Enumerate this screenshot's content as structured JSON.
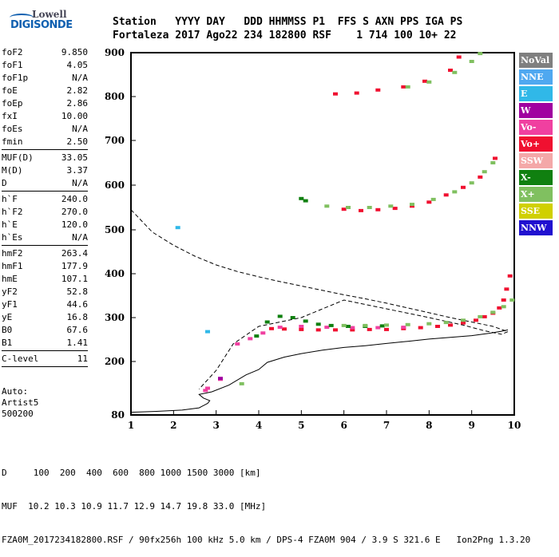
{
  "logo": {
    "line1": "Lowell",
    "line2": "DIGISONDE"
  },
  "header": {
    "labels": "Station   YYYY DAY   DDD HHMMSS P1  FFS S AXN PPS IGA PS",
    "values": "Fortaleza 2017 Ago22 234 182800 RSF    1 714 100 10+ 22"
  },
  "params": {
    "group1": [
      {
        "k": "foF2",
        "v": "9.850"
      },
      {
        "k": "foF1",
        "v": "4.05"
      },
      {
        "k": "foF1p",
        "v": "N/A"
      },
      {
        "k": "foE",
        "v": "2.82"
      },
      {
        "k": "foEp",
        "v": "2.86"
      },
      {
        "k": "fxI",
        "v": "10.00"
      },
      {
        "k": "foEs",
        "v": "N/A"
      },
      {
        "k": "fmin",
        "v": "2.50"
      }
    ],
    "group2": [
      {
        "k": "MUF(D)",
        "v": "33.05"
      },
      {
        "k": "M(D)",
        "v": "3.37"
      },
      {
        "k": "D",
        "v": "N/A"
      }
    ],
    "group3": [
      {
        "k": "h`F",
        "v": "240.0"
      },
      {
        "k": "h`F2",
        "v": "270.0"
      },
      {
        "k": "h`E",
        "v": "120.0"
      },
      {
        "k": "h`Es",
        "v": "N/A"
      }
    ],
    "group4": [
      {
        "k": "hmF2",
        "v": "263.4"
      },
      {
        "k": "hmF1",
        "v": "177.9"
      },
      {
        "k": "hmE",
        "v": "107.1"
      },
      {
        "k": "yF2",
        "v": "52.8"
      },
      {
        "k": "yF1",
        "v": "44.6"
      },
      {
        "k": "yE",
        "v": "16.8"
      },
      {
        "k": "B0",
        "v": "67.6"
      },
      {
        "k": "B1",
        "v": "1.41"
      }
    ],
    "group5": [
      {
        "k": "C-level",
        "v": "11"
      }
    ]
  },
  "auto": {
    "line1": "Auto:",
    "line2": "Artist5",
    "line3": "500200"
  },
  "footer": {
    "line1": "D     100  200  400  600  800 1000 1500 3000 [km]",
    "line2": "MUF  10.2 10.3 10.9 11.7 12.9 14.7 19.8 33.0 [MHz]",
    "line3": "FZA0M_2017234182800.RSF / 90fx256h 100 kHz 5.0 km / DPS-4 FZA0M 904 / 3.9 S 321.6 E   Ion2Png 1.3.20"
  },
  "legend": [
    {
      "label": "NoVal",
      "color": "#7f7f7f"
    },
    {
      "label": "NNE",
      "color": "#4fa8f0"
    },
    {
      "label": "E",
      "color": "#30b8e8"
    },
    {
      "label": "W",
      "color": "#a000a0"
    },
    {
      "label": "Vo-",
      "color": "#f040a0"
    },
    {
      "label": "Vo+",
      "color": "#f01030"
    },
    {
      "label": "SSW",
      "color": "#f4a8a8"
    },
    {
      "label": "X-",
      "color": "#108010"
    },
    {
      "label": "X+",
      "color": "#80c060"
    },
    {
      "label": "SSE",
      "color": "#d0d000"
    },
    {
      "label": "NNW",
      "color": "#2010d0"
    }
  ],
  "chart_data": {
    "type": "scatter",
    "x_ticks": [
      "1",
      "2",
      "3",
      "4",
      "5",
      "6",
      "7",
      "8",
      "9",
      "10"
    ],
    "y_ticks": [
      "80",
      "200",
      "300",
      "400",
      "500",
      "600",
      "700",
      "800",
      "900"
    ],
    "xlim": [
      1,
      10
    ],
    "ylim": [
      80,
      900
    ],
    "series": [
      {
        "name": "Vo+",
        "color": "#f01030",
        "points": [
          [
            4.3,
            275
          ],
          [
            4.6,
            274
          ],
          [
            5.0,
            273
          ],
          [
            5.4,
            272
          ],
          [
            5.8,
            272
          ],
          [
            6.2,
            272
          ],
          [
            6.6,
            273
          ],
          [
            7.0,
            273
          ],
          [
            7.4,
            275
          ],
          [
            7.8,
            277
          ],
          [
            8.2,
            280
          ],
          [
            8.5,
            283
          ],
          [
            8.8,
            288
          ],
          [
            9.1,
            294
          ],
          [
            9.3,
            302
          ],
          [
            9.5,
            310
          ],
          [
            9.65,
            322
          ],
          [
            9.75,
            340
          ],
          [
            9.82,
            365
          ],
          [
            9.9,
            395
          ],
          [
            6.0,
            546
          ],
          [
            6.4,
            543
          ],
          [
            6.8,
            545
          ],
          [
            7.2,
            548
          ],
          [
            7.6,
            553
          ],
          [
            8.0,
            562
          ],
          [
            8.4,
            578
          ],
          [
            8.8,
            595
          ],
          [
            9.2,
            618
          ],
          [
            9.55,
            660
          ],
          [
            5.8,
            806
          ],
          [
            6.3,
            808
          ],
          [
            6.8,
            815
          ],
          [
            7.4,
            822
          ],
          [
            7.9,
            835
          ],
          [
            8.5,
            860
          ],
          [
            8.7,
            890
          ]
        ]
      },
      {
        "name": "Vo-",
        "color": "#f040a0",
        "points": [
          [
            3.5,
            240
          ],
          [
            3.8,
            252
          ],
          [
            4.1,
            265
          ],
          [
            4.5,
            278
          ],
          [
            5.0,
            280
          ],
          [
            5.6,
            278
          ],
          [
            6.2,
            277
          ],
          [
            6.8,
            277
          ],
          [
            7.4,
            278
          ],
          [
            2.8,
            140
          ],
          [
            2.75,
            135
          ],
          [
            3.1,
            160
          ]
        ]
      },
      {
        "name": "X-",
        "color": "#108010",
        "points": [
          [
            3.95,
            258
          ],
          [
            4.2,
            290
          ],
          [
            4.5,
            303
          ],
          [
            4.8,
            300
          ],
          [
            5.1,
            292
          ],
          [
            5.4,
            285
          ],
          [
            5.7,
            282
          ],
          [
            6.1,
            280
          ],
          [
            6.5,
            280
          ],
          [
            6.9,
            281
          ],
          [
            5.0,
            570
          ],
          [
            5.1,
            565
          ]
        ]
      },
      {
        "name": "X+",
        "color": "#80c060",
        "points": [
          [
            6.0,
            282
          ],
          [
            6.5,
            282
          ],
          [
            7.0,
            283
          ],
          [
            7.5,
            284
          ],
          [
            8.0,
            286
          ],
          [
            8.4,
            289
          ],
          [
            8.8,
            294
          ],
          [
            9.2,
            302
          ],
          [
            9.5,
            312
          ],
          [
            9.75,
            325
          ],
          [
            9.95,
            340
          ],
          [
            5.6,
            553
          ],
          [
            6.1,
            550
          ],
          [
            6.6,
            550
          ],
          [
            7.1,
            553
          ],
          [
            7.6,
            557
          ],
          [
            8.1,
            568
          ],
          [
            8.6,
            585
          ],
          [
            9.0,
            605
          ],
          [
            9.3,
            630
          ],
          [
            9.5,
            650
          ],
          [
            7.5,
            822
          ],
          [
            8.0,
            833
          ],
          [
            8.6,
            855
          ],
          [
            9.0,
            880
          ],
          [
            9.2,
            898
          ],
          [
            3.6,
            150
          ]
        ]
      },
      {
        "name": "E",
        "color": "#30b8e8",
        "points": [
          [
            2.1,
            505
          ],
          [
            2.8,
            268
          ]
        ]
      },
      {
        "name": "W",
        "color": "#a000a0",
        "points": [
          [
            3.1,
            162
          ]
        ]
      }
    ],
    "virtual_height_profile": {
      "style": "dashed",
      "points": [
        [
          1.0,
          545
        ],
        [
          1.5,
          495
        ],
        [
          2.0,
          465
        ],
        [
          2.5,
          440
        ],
        [
          3.0,
          420
        ],
        [
          3.5,
          405
        ],
        [
          4.0,
          393
        ],
        [
          4.5,
          382
        ],
        [
          5.0,
          372
        ],
        [
          5.5,
          362
        ],
        [
          6.0,
          352
        ],
        [
          6.5,
          343
        ],
        [
          7.0,
          333
        ],
        [
          7.5,
          322
        ],
        [
          8.0,
          311
        ],
        [
          8.5,
          300
        ],
        [
          9.0,
          290
        ],
        [
          9.5,
          280
        ],
        [
          9.85,
          268
        ],
        [
          9.7,
          262
        ],
        [
          9.3,
          270
        ],
        [
          8.8,
          283
        ],
        [
          8.0,
          300
        ],
        [
          7.0,
          320
        ],
        [
          6.0,
          340
        ],
        [
          5.0,
          300
        ],
        [
          4.5,
          290
        ],
        [
          4.0,
          280
        ],
        [
          3.4,
          240
        ],
        [
          3.0,
          180
        ],
        [
          2.6,
          138
        ]
      ]
    },
    "true_height_profile": {
      "style": "solid",
      "points": [
        [
          1.0,
          86
        ],
        [
          1.6,
          88
        ],
        [
          2.2,
          91
        ],
        [
          2.6,
          96
        ],
        [
          2.8,
          106
        ],
        [
          2.85,
          112
        ],
        [
          2.7,
          118
        ],
        [
          2.6,
          126
        ],
        [
          2.9,
          132
        ],
        [
          3.3,
          147
        ],
        [
          3.7,
          170
        ],
        [
          4.0,
          182
        ],
        [
          4.2,
          198
        ],
        [
          4.6,
          210
        ],
        [
          5.0,
          218
        ],
        [
          5.5,
          226
        ],
        [
          6.0,
          232
        ],
        [
          6.5,
          236
        ],
        [
          7.0,
          241
        ],
        [
          7.5,
          246
        ],
        [
          8.0,
          251
        ],
        [
          8.5,
          255
        ],
        [
          9.0,
          259
        ],
        [
          9.4,
          264
        ],
        [
          9.7,
          269
        ],
        [
          9.85,
          272
        ]
      ]
    }
  }
}
